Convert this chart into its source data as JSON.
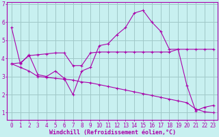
{
  "xlabel": "Windchill (Refroidissement éolien,°C)",
  "background_color": "#c8f0f0",
  "grid_color": "#a0c8c8",
  "line_color": "#aa00aa",
  "x_ticks": [
    0,
    1,
    2,
    3,
    4,
    5,
    6,
    7,
    8,
    9,
    10,
    11,
    12,
    13,
    14,
    15,
    16,
    17,
    18,
    19,
    20,
    21,
    22,
    23
  ],
  "ylim": [
    0.6,
    7.1
  ],
  "xlim": [
    -0.5,
    23.5
  ],
  "line1_y": [
    5.7,
    3.7,
    4.2,
    3.1,
    3.0,
    3.3,
    2.9,
    2.0,
    3.3,
    3.5,
    4.7,
    4.8,
    5.3,
    5.7,
    6.5,
    6.65,
    6.0,
    5.5,
    4.5,
    4.5,
    2.5,
    1.1,
    1.3,
    1.4
  ],
  "line2_y": [
    3.7,
    3.75,
    4.15,
    4.2,
    4.25,
    4.3,
    4.3,
    3.6,
    3.6,
    4.3,
    4.35,
    4.35,
    4.35,
    4.35,
    4.35,
    4.35,
    4.35,
    4.35,
    4.35,
    4.5,
    4.5,
    4.5,
    4.5,
    4.5
  ],
  "line3_y": [
    3.7,
    3.5,
    3.3,
    3.0,
    2.95,
    2.9,
    2.85,
    2.8,
    2.7,
    2.65,
    2.55,
    2.45,
    2.35,
    2.25,
    2.15,
    2.05,
    1.95,
    1.85,
    1.75,
    1.65,
    1.55,
    1.2,
    1.05,
    1.0
  ],
  "yticks": [
    1,
    2,
    3,
    4,
    5,
    6,
    7
  ],
  "tick_fontsize": 5.5,
  "xlabel_fontsize": 6.0
}
